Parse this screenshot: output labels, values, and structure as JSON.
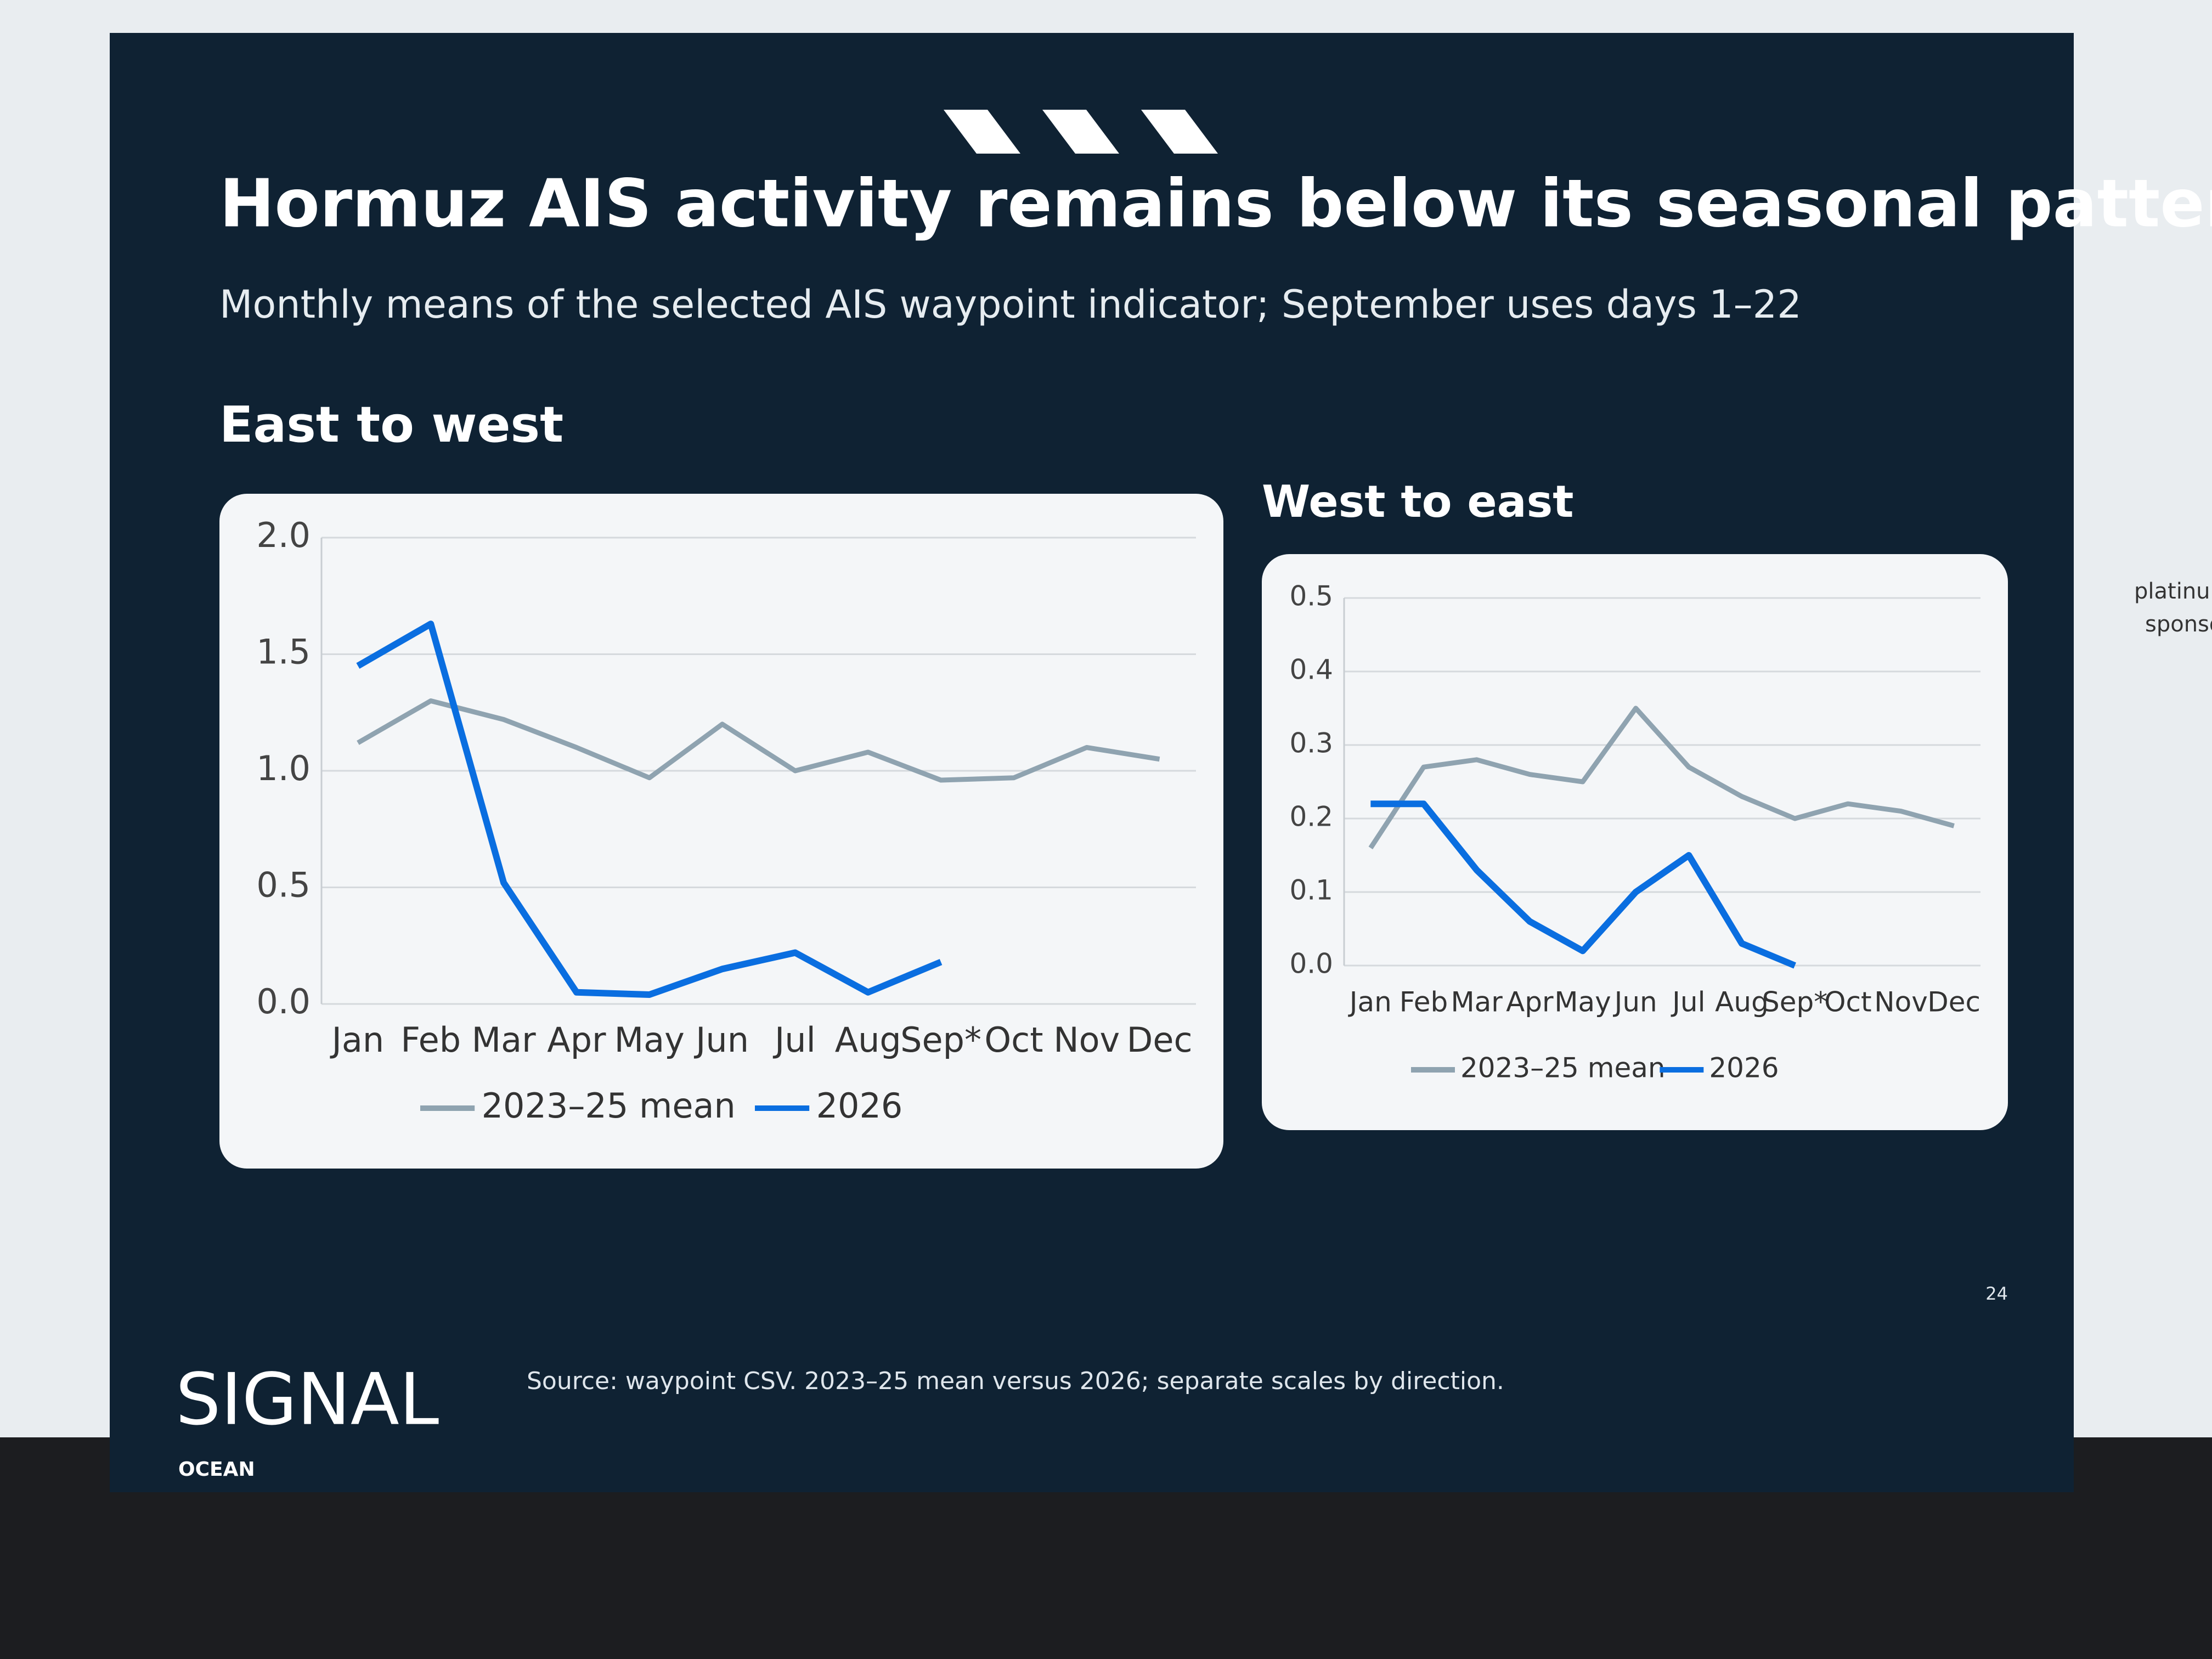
{
  "slide": {
    "title": "Hormuz AIS activity remains below its seasonal pattern",
    "subtitle": "Monthly means of the selected AIS waypoint indicator; September uses days 1–22",
    "source": "Source: waypoint CSV. 2023–25 mean versus 2026; separate scales by direction.",
    "page_number": "24",
    "logo": "SIGNAL",
    "logo_sub": "OCEAN",
    "side_text": [
      "platinu",
      "sponso"
    ]
  },
  "chart_data": [
    {
      "type": "line",
      "title": "East to west",
      "categories": [
        "Jan",
        "Feb",
        "Mar",
        "Apr",
        "May",
        "Jun",
        "Jul",
        "Aug",
        "Sep*",
        "Oct",
        "Nov",
        "Dec"
      ],
      "series": [
        {
          "name": "2023–25 mean",
          "color": "#8fa3b0",
          "values": [
            1.12,
            1.3,
            1.22,
            1.1,
            0.97,
            1.2,
            1.0,
            1.08,
            0.96,
            0.97,
            1.1,
            1.05
          ]
        },
        {
          "name": "2026",
          "color": "#0a6ee0",
          "values": [
            1.45,
            1.63,
            0.52,
            0.05,
            0.04,
            0.15,
            0.22,
            0.05,
            0.18,
            null,
            null,
            null
          ]
        }
      ],
      "ylim": [
        0,
        2
      ],
      "yticks": [
        {
          "value": 0,
          "label": "0.0"
        },
        {
          "value": 0.5,
          "label": "0.5"
        },
        {
          "value": 1,
          "label": "1.0"
        },
        {
          "value": 1.5,
          "label": "1.5"
        },
        {
          "value": 2,
          "label": "2.0"
        }
      ],
      "grid": true,
      "legend": "bottom"
    },
    {
      "type": "line",
      "title": "West to east",
      "categories": [
        "Jan",
        "Feb",
        "Mar",
        "Apr",
        "May",
        "Jun",
        "Jul",
        "Aug",
        "Sep*",
        "Oct",
        "Nov",
        "Dec"
      ],
      "series": [
        {
          "name": "2023–25 mean",
          "color": "#8fa3b0",
          "values": [
            0.16,
            0.27,
            0.28,
            0.26,
            0.25,
            0.35,
            0.27,
            0.23,
            0.2,
            0.22,
            0.21,
            0.19
          ]
        },
        {
          "name": "2026",
          "color": "#0a6ee0",
          "values": [
            0.22,
            0.22,
            0.13,
            0.06,
            0.02,
            0.1,
            0.15,
            0.03,
            0.0,
            null,
            null,
            null
          ]
        }
      ],
      "ylim": [
        0,
        0.5
      ],
      "yticks": [
        {
          "value": 0,
          "label": "0.0"
        },
        {
          "value": 0.1,
          "label": "0.1"
        },
        {
          "value": 0.2,
          "label": "0.2"
        },
        {
          "value": 0.3,
          "label": "0.3"
        },
        {
          "value": 0.4,
          "label": "0.4"
        },
        {
          "value": 0.5,
          "label": "0.5"
        }
      ],
      "grid": true,
      "legend": "bottom"
    }
  ]
}
